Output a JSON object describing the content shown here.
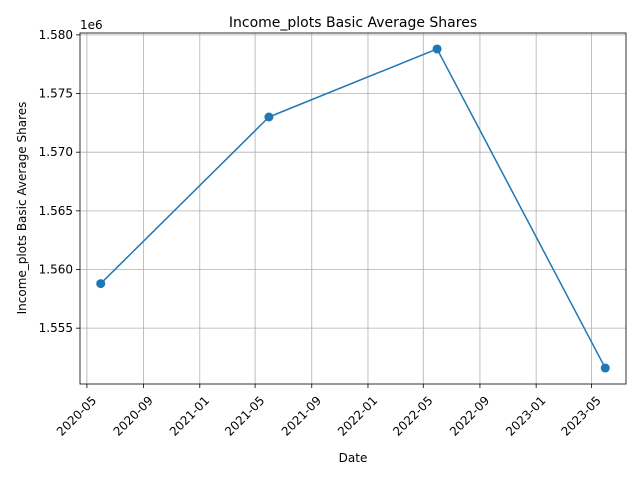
{
  "chart_data": {
    "type": "line",
    "title": "Income_plots Basic Average Shares",
    "xlabel": "Date",
    "ylabel": "Income_plots Basic Average Shares",
    "offset_label": "1e6",
    "grid": true,
    "color": "#1f77b4",
    "marker": "circle",
    "series": [
      {
        "x": [
          "2020-05-31",
          "2021-05-31",
          "2022-05-31",
          "2023-05-31"
        ],
        "values": [
          1558800,
          1573000,
          1578800,
          1551600
        ]
      }
    ],
    "x_ticks": [
      "2020-05",
      "2020-09",
      "2021-01",
      "2021-05",
      "2021-09",
      "2022-01",
      "2022-05",
      "2022-09",
      "2023-01",
      "2023-05"
    ],
    "x_tick_dates": [
      "2020-05-01",
      "2020-09-01",
      "2021-01-01",
      "2021-05-01",
      "2021-09-01",
      "2022-01-01",
      "2022-05-01",
      "2022-09-01",
      "2023-01-01",
      "2023-05-01"
    ],
    "xlim": [
      "2020-04-16",
      "2023-07-15"
    ],
    "y_ticks": [
      1555000,
      1560000,
      1565000,
      1570000,
      1575000,
      1580000
    ],
    "y_tick_labels": [
      "1.555",
      "1.560",
      "1.565",
      "1.570",
      "1.575",
      "1.580"
    ],
    "ylim": [
      1550240,
      1580160
    ]
  }
}
